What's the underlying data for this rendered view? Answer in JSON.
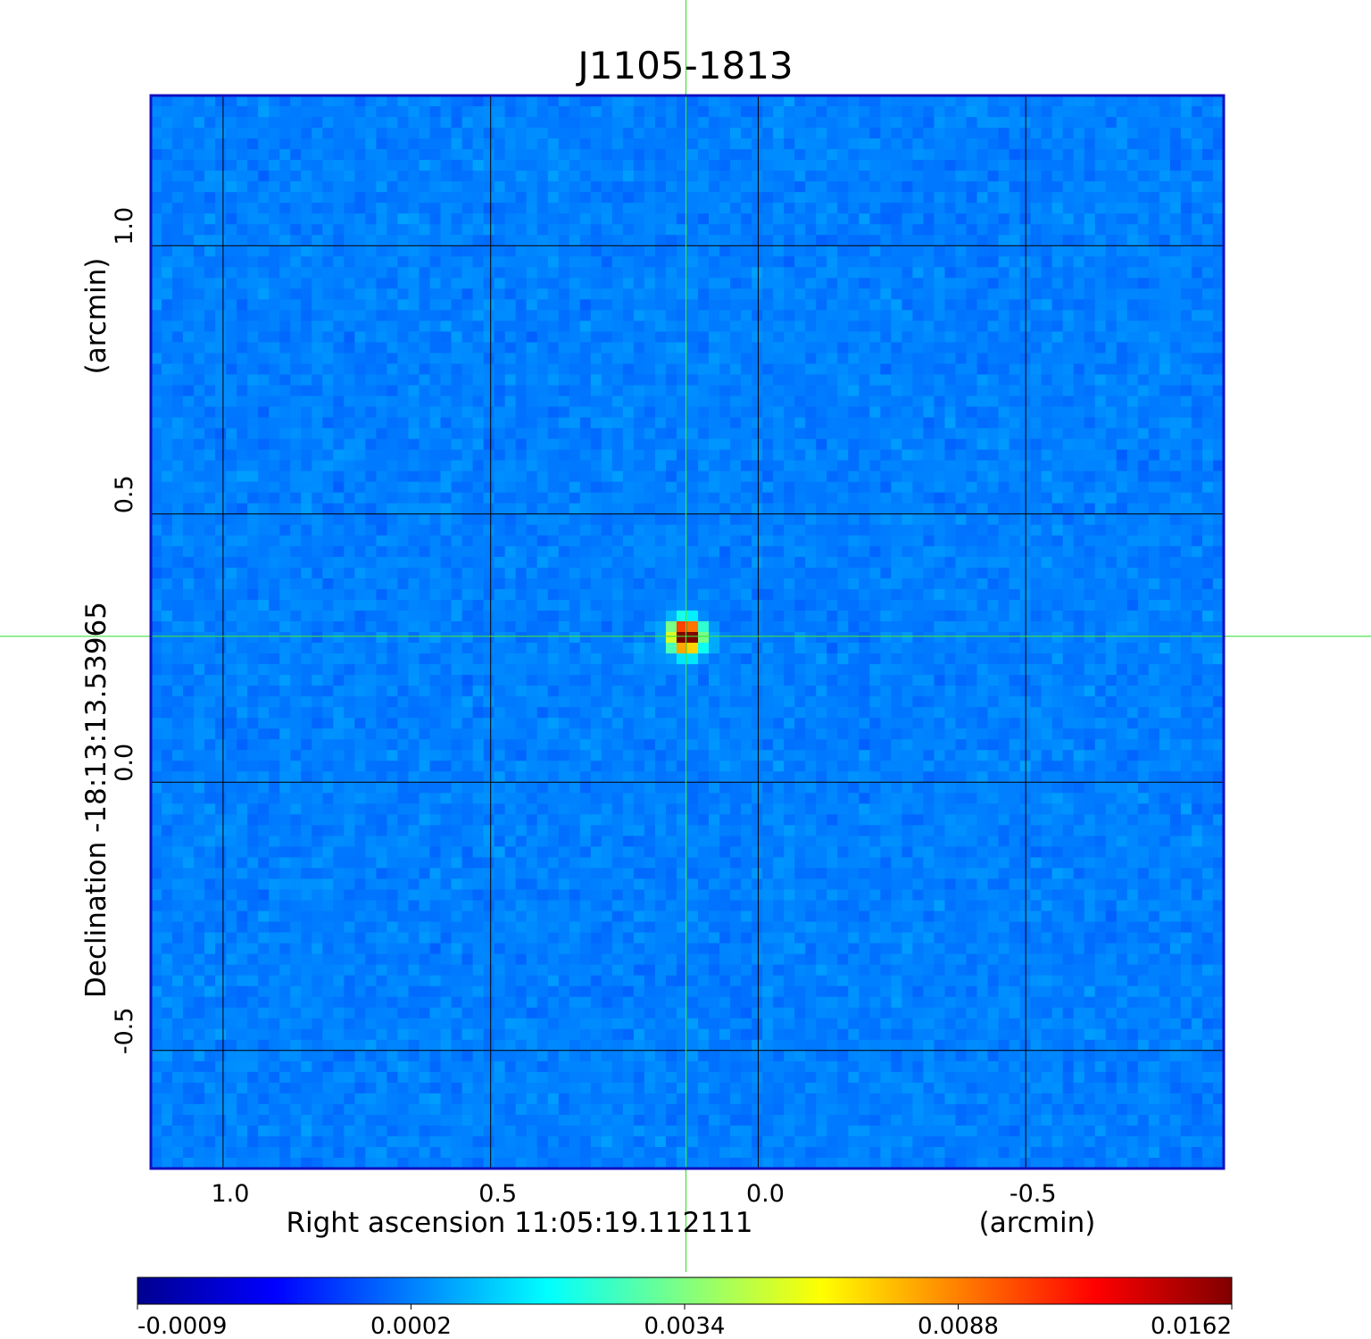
{
  "chart_data": {
    "type": "heatmap",
    "title": "J1105-1813",
    "title_color": "#1010d0",
    "xlabel": "Right ascension  11:05:19.112111",
    "xunit": "(arcmin)",
    "ylabel": "Declination  -18:13:13.53965",
    "yunit": "(arcmin)",
    "xlim": [
      1.135,
      -0.87
    ],
    "ylim": [
      -0.72,
      1.28
    ],
    "xticks": [
      {
        "value": 1.0,
        "label": "1.0"
      },
      {
        "value": 0.5,
        "label": "0.5"
      },
      {
        "value": 0.0,
        "label": "0.0"
      },
      {
        "value": -0.5,
        "label": "-0.5"
      }
    ],
    "yticks": [
      {
        "value": 1.0,
        "label": "1.0"
      },
      {
        "value": 0.5,
        "label": "0.5"
      },
      {
        "value": 0.0,
        "label": "0.0"
      },
      {
        "value": -0.5,
        "label": "-0.5"
      }
    ],
    "grid": true,
    "colormap": "jet",
    "frame_color": "#1010c0",
    "crosshair": {
      "x": 0.135,
      "y": 0.272,
      "color": "#40e040"
    },
    "source": {
      "x": 0.135,
      "y": 0.272,
      "peak": 0.0162
    },
    "background_level": 0.0002,
    "colorbar": {
      "ticks": [
        {
          "value": -0.0009,
          "label": "-0.0009"
        },
        {
          "value": 0.0002,
          "label": "0.0002"
        },
        {
          "value": 0.0034,
          "label": "0.0034"
        },
        {
          "value": 0.0088,
          "label": "0.0088"
        },
        {
          "value": 0.0162,
          "label": "0.0162"
        }
      ],
      "stops": [
        "#00008f",
        "#0000ff",
        "#0080ff",
        "#00ffff",
        "#80ff80",
        "#ffff00",
        "#ff8000",
        "#ff0000",
        "#800000"
      ]
    }
  }
}
